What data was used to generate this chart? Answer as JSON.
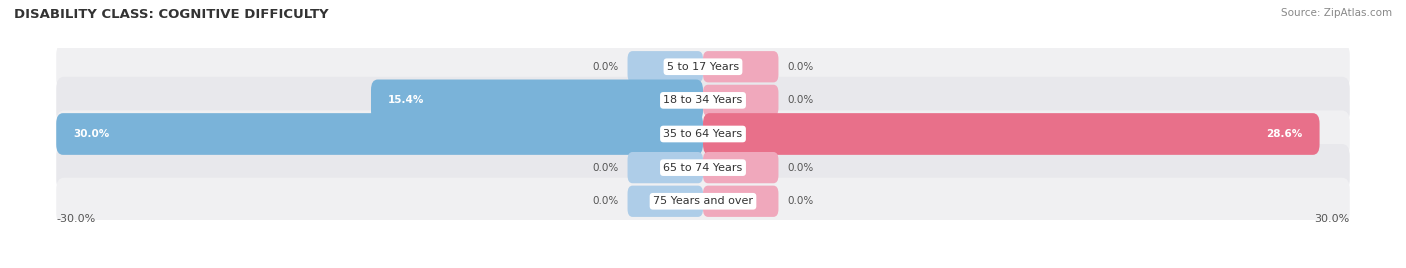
{
  "title": "DISABILITY CLASS: COGNITIVE DIFFICULTY",
  "source": "Source: ZipAtlas.com",
  "categories": [
    "5 to 17 Years",
    "18 to 34 Years",
    "35 to 64 Years",
    "65 to 74 Years",
    "75 Years and over"
  ],
  "male_values": [
    0.0,
    15.4,
    30.0,
    0.0,
    0.0
  ],
  "female_values": [
    0.0,
    0.0,
    28.6,
    0.0,
    0.0
  ],
  "male_color": "#7ab3d9",
  "female_color": "#e8708a",
  "male_color_light": "#aecde8",
  "female_color_light": "#f0a8bc",
  "row_bg_odd": "#f0f0f2",
  "row_bg_even": "#e8e8ec",
  "max_value": 30.0,
  "stub_value": 3.5,
  "title_fontsize": 9.5,
  "source_fontsize": 7.5,
  "label_fontsize": 7.5,
  "cat_fontsize": 8,
  "axis_label_fontsize": 8,
  "legend_fontsize": 8,
  "x_axis_left_label": "-30.0%",
  "x_axis_right_label": "30.0%"
}
